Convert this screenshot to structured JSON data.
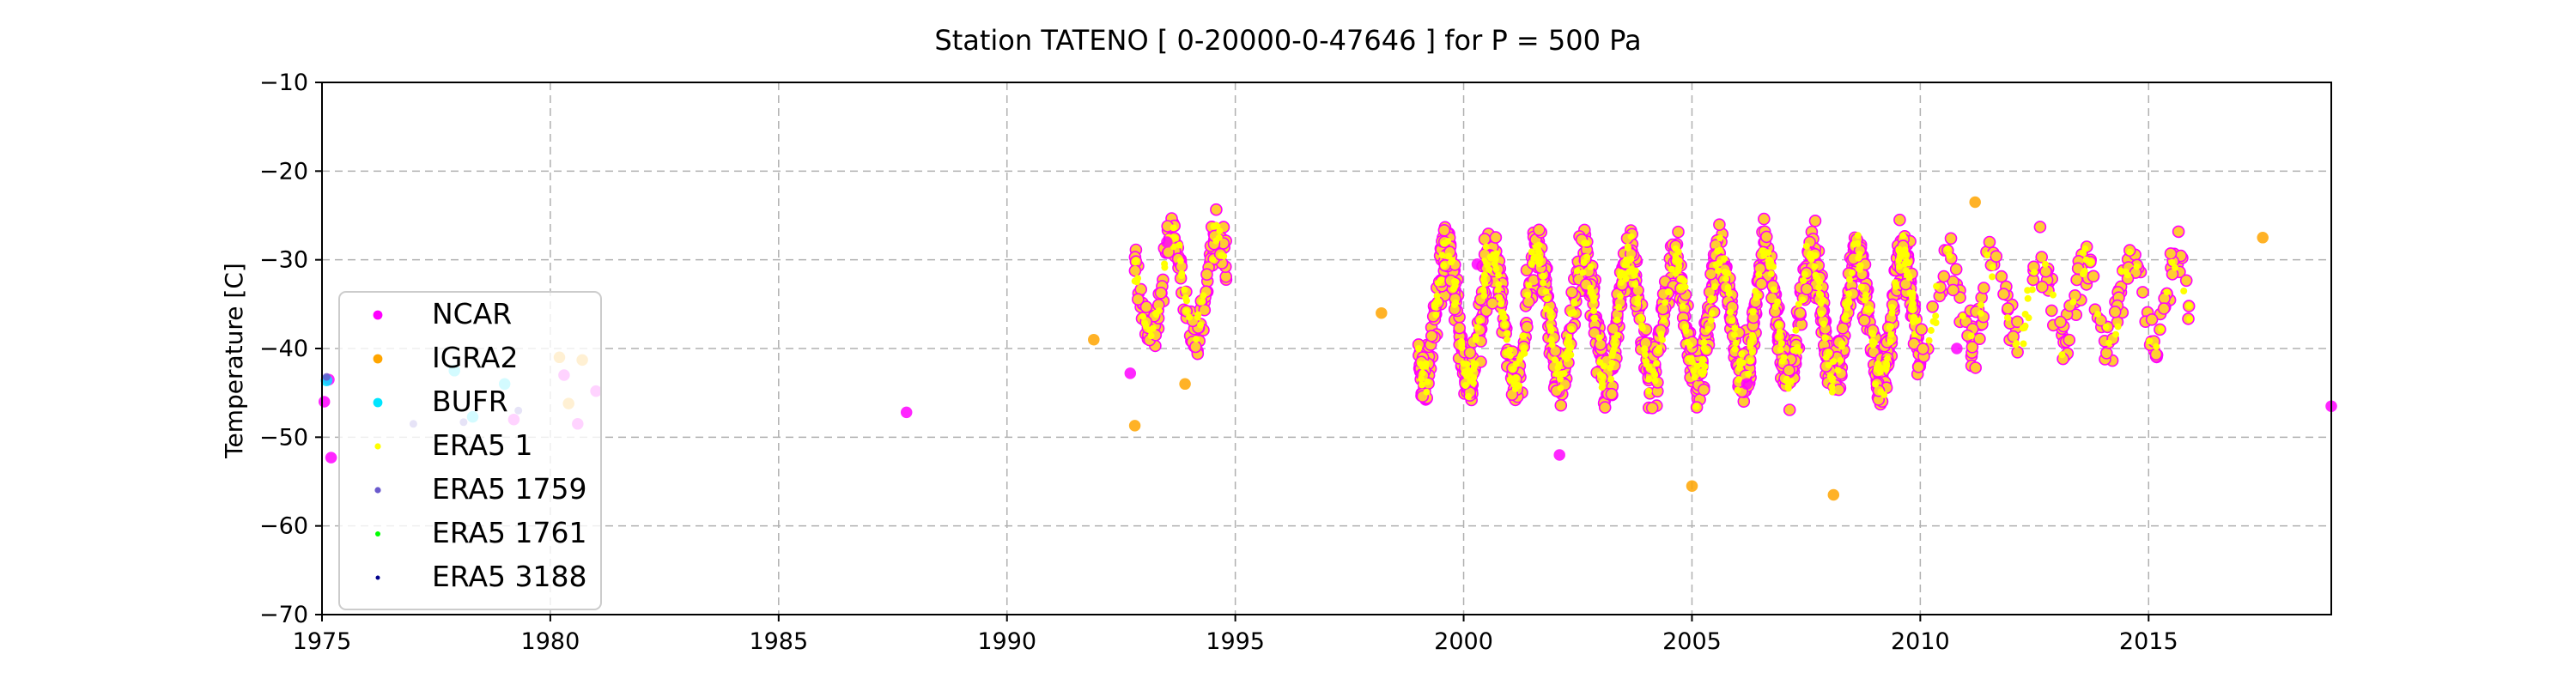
{
  "chart_data": {
    "type": "scatter",
    "title": "Station  TATENO [ 0-20000-0-47646 ]  for P = 500 Pa",
    "xlabel": "",
    "ylabel": "Temperature [C]",
    "xlim": [
      1975,
      2019
    ],
    "ylim": [
      -70,
      -10
    ],
    "xticks": [
      1975,
      1980,
      1985,
      1990,
      1995,
      2000,
      2005,
      2010,
      2015
    ],
    "yticks": [
      -70,
      -60,
      -50,
      -40,
      -30,
      -20,
      -10
    ],
    "grid": true,
    "legend": {
      "placement": "lower-left"
    },
    "series": [
      {
        "name": "NCAR",
        "color": "#ff00ff",
        "marker_size": 9,
        "points": [
          [
            1975.2,
            -52.3
          ],
          [
            1975.05,
            -46.0
          ],
          [
            1975.15,
            -43.5
          ],
          [
            1979.2,
            -48.0
          ],
          [
            1980.3,
            -43.0
          ],
          [
            1980.6,
            -48.5
          ],
          [
            1981.0,
            -44.8
          ],
          [
            1987.8,
            -47.2
          ],
          [
            1992.7,
            -42.8
          ],
          [
            1993.5,
            -28.0
          ],
          [
            2000.3,
            -30.5
          ],
          [
            2002.1,
            -52.0
          ],
          [
            2006.2,
            -44.0
          ],
          [
            2010.8,
            -40.0
          ],
          [
            2019.0,
            -46.5
          ]
        ]
      },
      {
        "name": "IGRA2",
        "color": "#ffa500",
        "marker_size": 9,
        "points": [
          [
            1980.2,
            -41.0
          ],
          [
            1980.7,
            -41.3
          ],
          [
            1980.4,
            -46.2
          ],
          [
            1991.9,
            -39.0
          ],
          [
            1992.8,
            -48.7
          ],
          [
            1998.2,
            -36.0
          ],
          [
            1993.9,
            -44.0
          ],
          [
            2005.0,
            -55.5
          ],
          [
            2008.1,
            -56.5
          ],
          [
            2011.2,
            -23.5
          ],
          [
            2017.5,
            -27.5
          ]
        ]
      },
      {
        "name": "BUFR",
        "color": "#00e5ff",
        "marker_size": 9,
        "points": [
          [
            1975.1,
            -43.6
          ],
          [
            1977.9,
            -42.5
          ],
          [
            1978.3,
            -47.7
          ],
          [
            1979.0,
            -44.0
          ]
        ]
      },
      {
        "name": "ERA5 1",
        "color": "#ffff00",
        "marker_size": 6,
        "points": []
      },
      {
        "name": "ERA5 1759",
        "color": "#6a5acd",
        "marker_size": 6,
        "points": [
          [
            1975.1,
            -43.2
          ],
          [
            1977.0,
            -48.5
          ],
          [
            1978.1,
            -48.3
          ],
          [
            1979.3,
            -47.0
          ]
        ]
      },
      {
        "name": "ERA5 1761",
        "color": "#00ff00",
        "marker_size": 5,
        "points": []
      },
      {
        "name": "ERA5 3188",
        "color": "#00008b",
        "marker_size": 4,
        "points": []
      }
    ],
    "dense_segments": [
      {
        "series": "ERA5 1",
        "ring": "#ff00ff",
        "fill": "#ffcc33",
        "from": 1992.8,
        "to": 1994.8,
        "center": -33.0,
        "amp": 5.5,
        "noise": 4.0,
        "count": 140,
        "ymin": -45.5,
        "ymax": -22.0
      },
      {
        "series": "ERA5 1",
        "ring": "#ff00ff",
        "fill": "#ffcc33",
        "from": 1999.0,
        "to": 2010.0,
        "center": -36.5,
        "amp": 7.0,
        "noise": 5.0,
        "count": 1400,
        "ymin": -54.0,
        "ymax": -16.5
      },
      {
        "series": "ERA5 1",
        "ring": "#ff00ff",
        "fill": "#ffcc33",
        "from": 2010.0,
        "to": 2015.9,
        "center": -34.5,
        "amp": 4.5,
        "noise": 4.5,
        "count": 170,
        "ymin": -46.0,
        "ymax": -23.5
      }
    ]
  }
}
